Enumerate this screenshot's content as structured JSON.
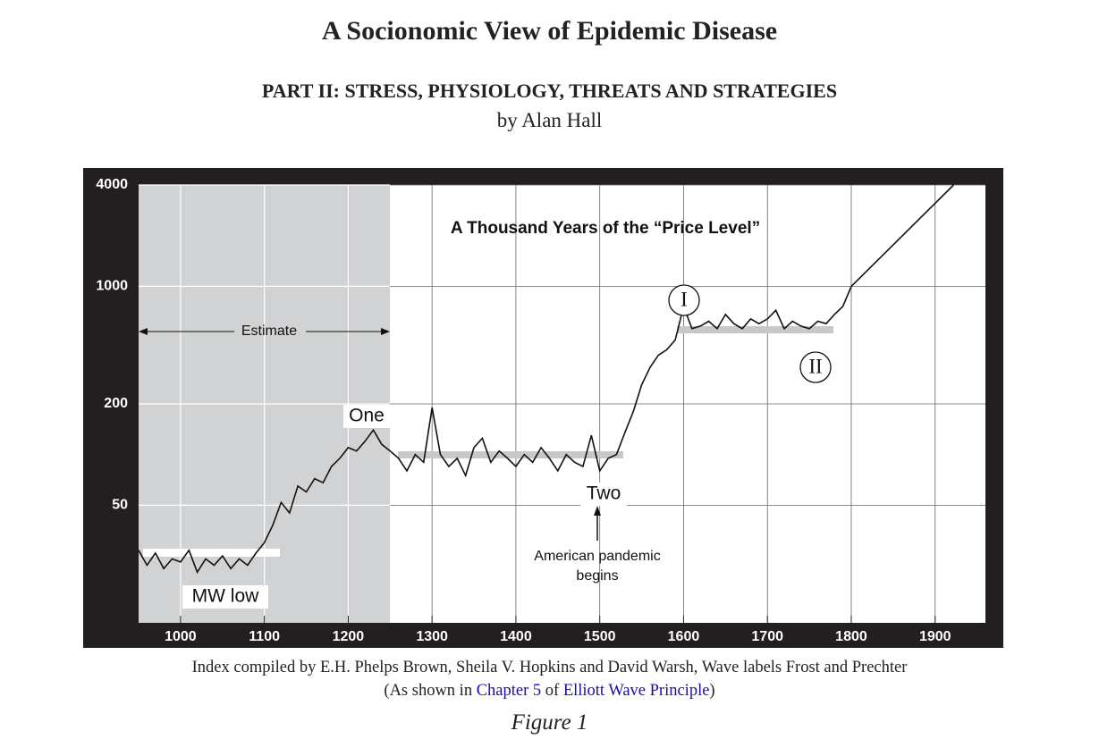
{
  "header": {
    "title": "A Socionomic View of Epidemic Disease",
    "subtitle": "PART II: STRESS, PHYSIOLOGY, THREATS AND STRATEGIES",
    "author": "by Alan Hall"
  },
  "chart_data": {
    "type": "line",
    "title": "A Thousand Years of the “Price Level”",
    "log_scale": true,
    "grid": true,
    "xlim": [
      950,
      1960
    ],
    "xticks": [
      1000,
      1100,
      1200,
      1300,
      1400,
      1500,
      1600,
      1700,
      1800,
      1900
    ],
    "ylim": [
      10,
      4000
    ],
    "yticks": [
      50,
      200,
      1000,
      4000
    ],
    "series": [
      {
        "color": "#111111",
        "x": [
          950,
          960,
          970,
          980,
          990,
          1000,
          1010,
          1020,
          1030,
          1040,
          1050,
          1060,
          1070,
          1080,
          1090,
          1100,
          1110,
          1120,
          1130,
          1140,
          1150,
          1160,
          1170,
          1180,
          1190,
          1200,
          1210,
          1220,
          1230,
          1240,
          1250,
          1260,
          1270,
          1280,
          1290,
          1300,
          1310,
          1320,
          1330,
          1340,
          1350,
          1360,
          1370,
          1380,
          1390,
          1400,
          1410,
          1420,
          1430,
          1440,
          1450,
          1460,
          1470,
          1480,
          1490,
          1500,
          1510,
          1520,
          1530,
          1540,
          1550,
          1560,
          1570,
          1580,
          1590,
          1600,
          1610,
          1620,
          1630,
          1640,
          1650,
          1660,
          1670,
          1680,
          1690,
          1700,
          1710,
          1720,
          1730,
          1740,
          1750,
          1760,
          1770,
          1780,
          1790,
          1800
        ],
        "values": [
          27,
          22,
          26,
          21,
          24,
          23,
          27,
          20,
          24,
          22,
          25,
          21,
          24,
          22,
          26,
          30,
          38,
          52,
          45,
          65,
          60,
          72,
          68,
          85,
          95,
          110,
          105,
          120,
          140,
          115,
          105,
          95,
          80,
          100,
          90,
          190,
          100,
          85,
          95,
          75,
          110,
          125,
          90,
          105,
          95,
          85,
          100,
          90,
          110,
          95,
          80,
          100,
          90,
          85,
          130,
          80,
          95,
          100,
          135,
          180,
          260,
          330,
          390,
          420,
          480,
          760,
          560,
          580,
          620,
          560,
          680,
          600,
          560,
          640,
          600,
          640,
          720,
          560,
          620,
          580,
          560,
          620,
          600,
          680,
          760,
          1000
        ]
      },
      {
        "color": "#111111",
        "x": [
          1800,
          1922
        ],
        "values": [
          1000,
          4000
        ]
      }
    ],
    "annotations": {
      "estimate": "Estimate",
      "one": "One",
      "two": "Two",
      "wave1": "I",
      "wave2": "II",
      "mw_low": "MW low",
      "pandemic": [
        "American pandemic",
        "begins"
      ]
    }
  },
  "caption": {
    "line1": "Index compiled by E.H. Phelps Brown, Sheila V. Hopkins and David Warsh, Wave labels Frost and Prechter",
    "line2": [
      "(As shown in ",
      "Chapter 5",
      " of ",
      "Elliott Wave Principle",
      ")"
    ],
    "figure": "Figure  1"
  }
}
